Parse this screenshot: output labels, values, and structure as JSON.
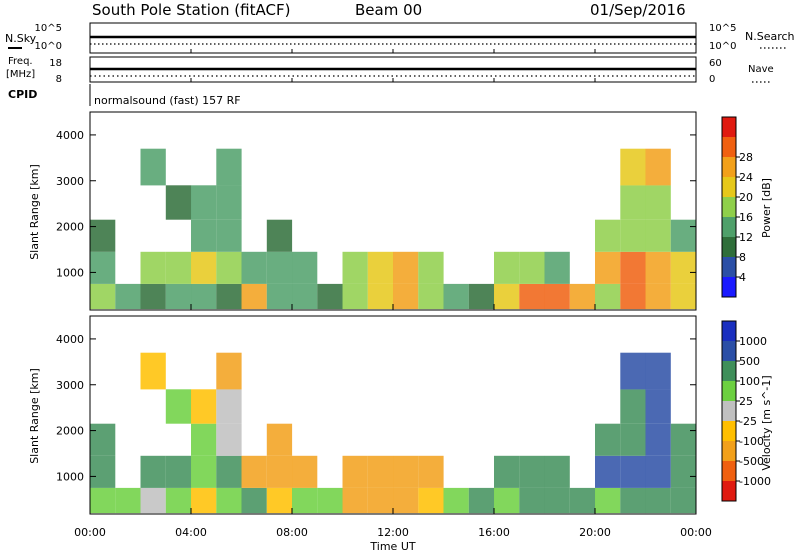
{
  "header": {
    "station": "South Pole Station (fitACF)",
    "beam": "Beam 00",
    "date": "01/Sep/2016"
  },
  "status_panels": {
    "nsky": {
      "label": "N.Sky",
      "ticks": [
        "10^5",
        "10^0"
      ]
    },
    "nsearch": {
      "label": "N.Search",
      "ticks": [
        "10^5",
        "10^0"
      ]
    },
    "freq": {
      "label_line1": "Freq.",
      "label_line2": "[MHz]",
      "ticks": [
        "18",
        "8"
      ]
    },
    "nave": {
      "label": "Nave",
      "ticks": [
        "60",
        "0"
      ]
    },
    "cpid": {
      "label": "CPID",
      "program": "normalsound (fast) 157 RF"
    }
  },
  "chart_data": [
    {
      "type": "heatmap",
      "name": "power",
      "title": "",
      "xlabel": "Time UT",
      "ylabel": "Slant Range [km]",
      "xlim": [
        0,
        24
      ],
      "ylim": [
        180,
        4500
      ],
      "x_ticks": [
        "00:00",
        "04:00",
        "08:00",
        "12:00",
        "16:00",
        "20:00",
        "00:00"
      ],
      "y_ticks": [
        "1000",
        "2000",
        "3000",
        "4000"
      ],
      "colorbar": {
        "label": "Power [dB]",
        "tick_labels": [
          "4",
          "8",
          "12",
          "16",
          "20",
          "24",
          "28"
        ],
        "levels": [
          0,
          4,
          8,
          12,
          16,
          20,
          24,
          28,
          32
        ],
        "colors": [
          "#1a1aff",
          "#2b4fa6",
          "#2f6e3a",
          "#4fa06a",
          "#8fcf4a",
          "#e6c81a",
          "#f2a01a",
          "#f06010",
          "#e01a10"
        ]
      },
      "x": [
        0.5,
        1.5,
        2.5,
        3.5,
        4.5,
        5.5,
        6.5,
        7.5,
        8.5,
        9.5,
        10.5,
        11.5,
        12.5,
        13.5,
        14.5,
        15.5,
        16.5,
        17.5,
        18.5,
        19.5,
        20.5,
        21.5,
        22.5,
        23.5
      ],
      "y": [
        400,
        1100,
        1800,
        2500,
        3300
      ],
      "z": [
        [
          12,
          8,
          6,
          10,
          8,
          6,
          22,
          10,
          8,
          6,
          14,
          18,
          22,
          12,
          8,
          6,
          18,
          24,
          26,
          20,
          12,
          24,
          22,
          18
        ],
        [
          10,
          null,
          12,
          14,
          16,
          14,
          8,
          8,
          10,
          null,
          14,
          16,
          20,
          12,
          null,
          null,
          14,
          12,
          10,
          null,
          22,
          24,
          22,
          16
        ],
        [
          6,
          null,
          null,
          null,
          10,
          8,
          null,
          6,
          null,
          null,
          null,
          null,
          null,
          null,
          null,
          null,
          null,
          null,
          null,
          null,
          12,
          14,
          12,
          8
        ],
        [
          null,
          null,
          null,
          6,
          8,
          10,
          null,
          null,
          null,
          null,
          null,
          null,
          null,
          null,
          null,
          null,
          null,
          null,
          null,
          null,
          null,
          12,
          14,
          null
        ],
        [
          null,
          null,
          8,
          null,
          null,
          8,
          null,
          null,
          null,
          null,
          null,
          null,
          null,
          null,
          null,
          null,
          null,
          null,
          null,
          null,
          null,
          18,
          20,
          null
        ]
      ]
    },
    {
      "type": "heatmap",
      "name": "velocity",
      "title": "",
      "xlabel": "Time UT",
      "ylabel": "Slant Range [km]",
      "xlim": [
        0,
        24
      ],
      "ylim": [
        180,
        4500
      ],
      "x_ticks": [
        "00:00",
        "04:00",
        "08:00",
        "12:00",
        "16:00",
        "20:00",
        "00:00"
      ],
      "y_ticks": [
        "1000",
        "2000",
        "3000",
        "4000"
      ],
      "colorbar": {
        "label": "Velocity [m s^-1]",
        "tick_labels": [
          "1000",
          "500",
          "100",
          "25",
          "-25",
          "-100",
          "-500",
          "-1000"
        ],
        "levels": [
          -1000,
          -500,
          -100,
          -25,
          25,
          100,
          500,
          1000
        ],
        "colors": [
          "#e01a10",
          "#f06010",
          "#f2a01a",
          "#ffbf00",
          "#c0c0c0",
          "#6cd040",
          "#3f8f5a",
          "#2b4fa6",
          "#1a2fbf"
        ]
      },
      "x": [
        0.5,
        1.5,
        2.5,
        3.5,
        4.5,
        5.5,
        6.5,
        7.5,
        8.5,
        9.5,
        10.5,
        11.5,
        12.5,
        13.5,
        14.5,
        15.5,
        16.5,
        17.5,
        18.5,
        19.5,
        20.5,
        21.5,
        22.5,
        23.5
      ],
      "y": [
        400,
        1100,
        1800,
        2500,
        3300
      ],
      "z": [
        [
          50,
          80,
          20,
          60,
          -50,
          40,
          100,
          -60,
          30,
          60,
          -150,
          -200,
          -150,
          -100,
          50,
          100,
          80,
          150,
          120,
          100,
          60,
          150,
          200,
          120
        ],
        [
          400,
          null,
          300,
          150,
          50,
          100,
          -200,
          -300,
          -350,
          null,
          -250,
          -400,
          -300,
          -200,
          null,
          null,
          200,
          100,
          150,
          null,
          500,
          600,
          500,
          200
        ],
        [
          300,
          null,
          null,
          null,
          50,
          0,
          null,
          -300,
          null,
          null,
          null,
          null,
          null,
          null,
          null,
          null,
          null,
          null,
          null,
          null,
          300,
          400,
          500,
          300
        ],
        [
          null,
          null,
          null,
          80,
          -50,
          0,
          null,
          null,
          null,
          null,
          null,
          null,
          null,
          null,
          null,
          null,
          null,
          null,
          null,
          null,
          null,
          400,
          500,
          null
        ],
        [
          null,
          null,
          -100,
          null,
          null,
          -150,
          null,
          null,
          null,
          null,
          null,
          null,
          null,
          null,
          null,
          null,
          null,
          null,
          null,
          null,
          null,
          700,
          800,
          null
        ]
      ]
    }
  ]
}
